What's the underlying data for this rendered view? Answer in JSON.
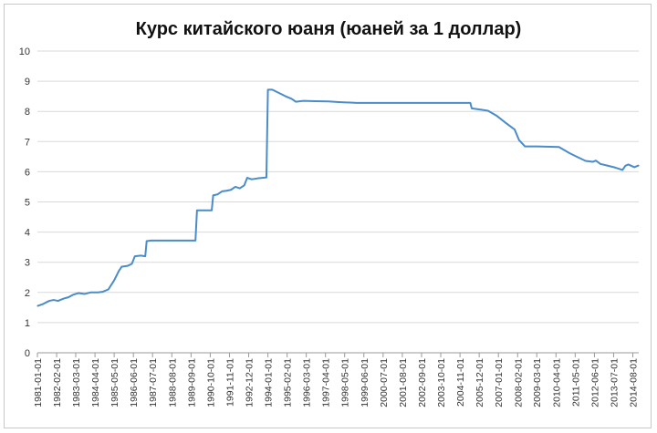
{
  "chart_data": {
    "type": "line",
    "title": "Курс китайского юаня (юаней за 1 доллар)",
    "xlabel": "",
    "ylabel": "",
    "ylim": [
      0,
      10
    ],
    "yticks": [
      0,
      1,
      2,
      3,
      4,
      5,
      6,
      7,
      8,
      9,
      10
    ],
    "xlim": [
      "1981-01-01",
      "2014-12-01"
    ],
    "grid": "horizontal",
    "legend": "none",
    "line_color": "#4a8cc9",
    "xtick_labels": [
      "1981-01-01",
      "1982-02-01",
      "1983-03-01",
      "1984-04-01",
      "1985-05-01",
      "1986-06-01",
      "1987-07-01",
      "1988-08-01",
      "1989-09-01",
      "1990-10-01",
      "1991-11-01",
      "1992-12-01",
      "1994-01-01",
      "1995-02-01",
      "1996-03-01",
      "1997-04-01",
      "1998-05-01",
      "1999-06-01",
      "2000-07-01",
      "2001-08-01",
      "2002-09-01",
      "2003-10-01",
      "2004-11-01",
      "2005-12-01",
      "2007-01-01",
      "2008-02-01",
      "2009-03-01",
      "2010-04-01",
      "2011-05-01",
      "2012-06-01",
      "2013-07-01",
      "2014-08-01"
    ],
    "series": [
      {
        "points": [
          [
            "1981-01-01",
            1.55
          ],
          [
            "1981-05-01",
            1.62
          ],
          [
            "1981-09-01",
            1.72
          ],
          [
            "1981-12-01",
            1.75
          ],
          [
            "1982-03-01",
            1.72
          ],
          [
            "1982-07-01",
            1.8
          ],
          [
            "1982-10-01",
            1.84
          ],
          [
            "1983-01-01",
            1.92
          ],
          [
            "1983-05-01",
            1.98
          ],
          [
            "1983-09-01",
            1.95
          ],
          [
            "1984-01-01",
            2.0
          ],
          [
            "1984-06-01",
            2.0
          ],
          [
            "1984-09-01",
            2.02
          ],
          [
            "1985-01-01",
            2.1
          ],
          [
            "1985-05-01",
            2.4
          ],
          [
            "1985-08-01",
            2.7
          ],
          [
            "1985-10-01",
            2.85
          ],
          [
            "1986-02-01",
            2.88
          ],
          [
            "1986-05-01",
            2.95
          ],
          [
            "1986-07-01",
            3.2
          ],
          [
            "1986-11-01",
            3.22
          ],
          [
            "1987-02-01",
            3.2
          ],
          [
            "1987-03-01",
            3.7
          ],
          [
            "1987-06-01",
            3.72
          ],
          [
            "1989-12-01",
            3.72
          ],
          [
            "1990-01-01",
            4.72
          ],
          [
            "1990-11-01",
            4.72
          ],
          [
            "1990-12-01",
            5.22
          ],
          [
            "1991-03-01",
            5.25
          ],
          [
            "1991-06-01",
            5.35
          ],
          [
            "1991-09-01",
            5.37
          ],
          [
            "1991-12-01",
            5.4
          ],
          [
            "1992-03-01",
            5.5
          ],
          [
            "1992-06-01",
            5.45
          ],
          [
            "1992-09-01",
            5.55
          ],
          [
            "1992-11-01",
            5.8
          ],
          [
            "1993-02-01",
            5.75
          ],
          [
            "1993-06-01",
            5.78
          ],
          [
            "1993-12-01",
            5.81
          ],
          [
            "1994-01-01",
            8.72
          ],
          [
            "1994-04-01",
            8.72
          ],
          [
            "1994-09-01",
            8.6
          ],
          [
            "1995-01-01",
            8.5
          ],
          [
            "1995-05-01",
            8.42
          ],
          [
            "1995-08-01",
            8.32
          ],
          [
            "1996-01-01",
            8.35
          ],
          [
            "1996-09-01",
            8.34
          ],
          [
            "1997-06-01",
            8.33
          ],
          [
            "1998-01-01",
            8.31
          ],
          [
            "1999-01-01",
            8.28
          ],
          [
            "2000-01-01",
            8.28
          ],
          [
            "2003-01-01",
            8.28
          ],
          [
            "2005-06-01",
            8.28
          ],
          [
            "2005-07-01",
            8.1
          ],
          [
            "2006-01-01",
            8.06
          ],
          [
            "2006-06-01",
            8.02
          ],
          [
            "2006-12-01",
            7.85
          ],
          [
            "2007-06-01",
            7.62
          ],
          [
            "2007-12-01",
            7.4
          ],
          [
            "2008-03-01",
            7.05
          ],
          [
            "2008-07-01",
            6.84
          ],
          [
            "2009-03-01",
            6.84
          ],
          [
            "2010-06-01",
            6.82
          ],
          [
            "2011-01-01",
            6.62
          ],
          [
            "2011-06-01",
            6.5
          ],
          [
            "2011-12-01",
            6.36
          ],
          [
            "2012-05-01",
            6.33
          ],
          [
            "2012-07-01",
            6.37
          ],
          [
            "2012-10-01",
            6.26
          ],
          [
            "2013-03-01",
            6.2
          ],
          [
            "2013-08-01",
            6.14
          ],
          [
            "2014-01-01",
            6.06
          ],
          [
            "2014-03-01",
            6.2
          ],
          [
            "2014-05-01",
            6.24
          ],
          [
            "2014-09-01",
            6.15
          ],
          [
            "2014-12-01",
            6.21
          ]
        ]
      }
    ]
  }
}
